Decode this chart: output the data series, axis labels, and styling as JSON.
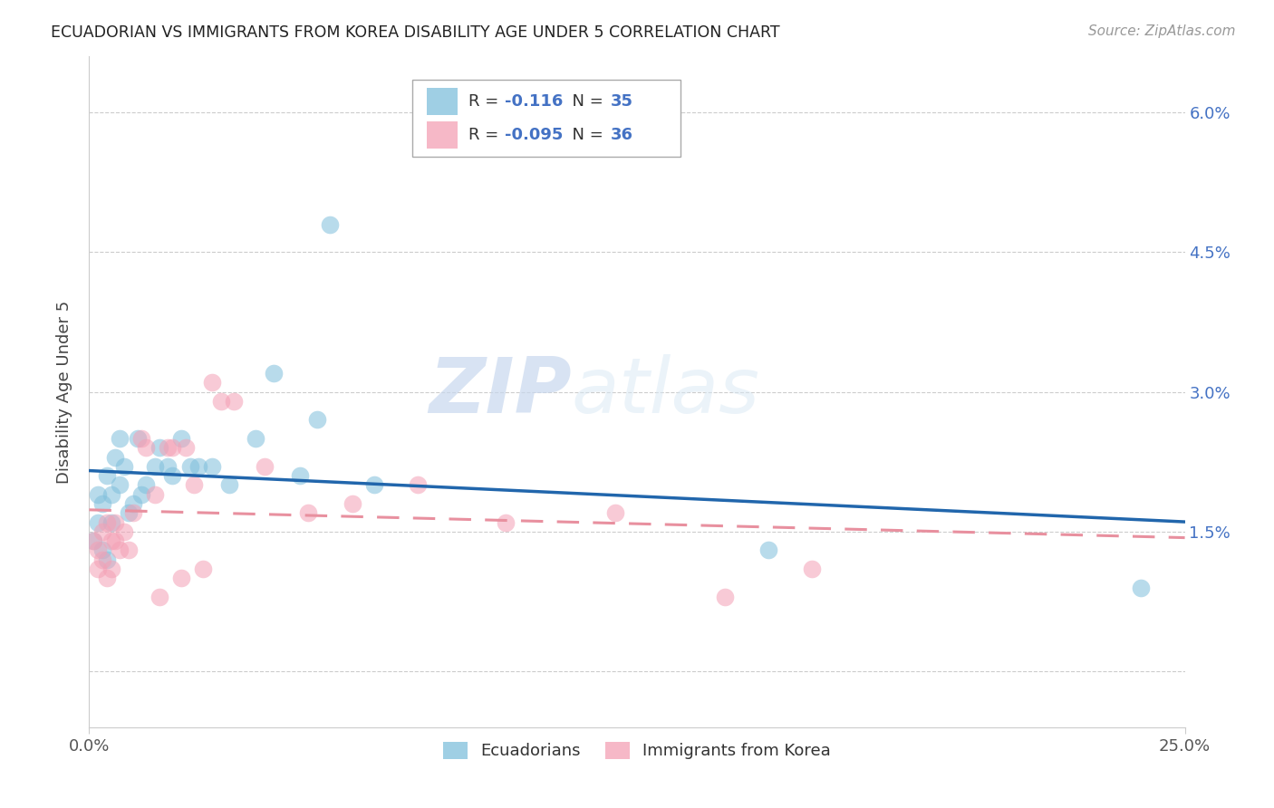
{
  "title": "ECUADORIAN VS IMMIGRANTS FROM KOREA DISABILITY AGE UNDER 5 CORRELATION CHART",
  "source": "Source: ZipAtlas.com",
  "ylabel": "Disability Age Under 5",
  "yticks": [
    0.0,
    0.015,
    0.03,
    0.045,
    0.06
  ],
  "ytick_labels": [
    "",
    "1.5%",
    "3.0%",
    "4.5%",
    "6.0%"
  ],
  "xmin": 0.0,
  "xmax": 0.25,
  "ymin": -0.006,
  "ymax": 0.066,
  "color_blue": "#7fbfdc",
  "color_pink": "#f4a0b5",
  "color_line_blue": "#2166ac",
  "color_line_pink": "#e8909f",
  "watermark_zip": "ZIP",
  "watermark_atlas": "atlas",
  "ecuadorians_x": [
    0.001,
    0.002,
    0.002,
    0.003,
    0.003,
    0.004,
    0.004,
    0.005,
    0.005,
    0.006,
    0.007,
    0.007,
    0.008,
    0.009,
    0.01,
    0.011,
    0.012,
    0.013,
    0.015,
    0.016,
    0.018,
    0.019,
    0.021,
    0.023,
    0.025,
    0.028,
    0.032,
    0.038,
    0.042,
    0.048,
    0.055,
    0.065,
    0.052,
    0.155,
    0.24
  ],
  "ecuadorians_y": [
    0.014,
    0.016,
    0.019,
    0.013,
    0.018,
    0.012,
    0.021,
    0.016,
    0.019,
    0.023,
    0.025,
    0.02,
    0.022,
    0.017,
    0.018,
    0.025,
    0.019,
    0.02,
    0.022,
    0.024,
    0.022,
    0.021,
    0.025,
    0.022,
    0.022,
    0.022,
    0.02,
    0.025,
    0.032,
    0.021,
    0.048,
    0.02,
    0.027,
    0.013,
    0.009
  ],
  "korea_x": [
    0.001,
    0.002,
    0.002,
    0.003,
    0.003,
    0.004,
    0.004,
    0.005,
    0.005,
    0.006,
    0.006,
    0.007,
    0.008,
    0.009,
    0.01,
    0.012,
    0.013,
    0.015,
    0.016,
    0.018,
    0.019,
    0.021,
    0.022,
    0.024,
    0.026,
    0.028,
    0.03,
    0.033,
    0.04,
    0.05,
    0.06,
    0.075,
    0.095,
    0.12,
    0.145,
    0.165
  ],
  "korea_y": [
    0.014,
    0.013,
    0.011,
    0.015,
    0.012,
    0.01,
    0.016,
    0.014,
    0.011,
    0.016,
    0.014,
    0.013,
    0.015,
    0.013,
    0.017,
    0.025,
    0.024,
    0.019,
    0.008,
    0.024,
    0.024,
    0.01,
    0.024,
    0.02,
    0.011,
    0.031,
    0.029,
    0.029,
    0.022,
    0.017,
    0.018,
    0.02,
    0.016,
    0.017,
    0.008,
    0.011
  ]
}
